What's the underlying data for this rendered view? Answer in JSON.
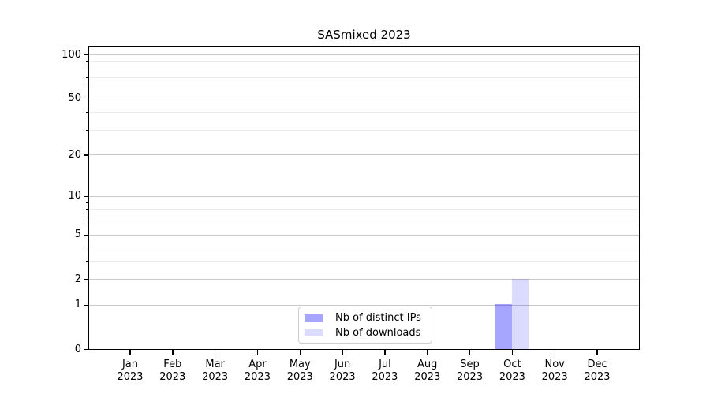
{
  "title": "SASmixed 2023",
  "colors": {
    "grid_major": "#c9c9c9",
    "grid_minor": "#ebebeb",
    "spine": "#000000",
    "legend_border": "#cccccc",
    "bar_distinct_ips": "rgba(0,0,255,0.35)",
    "bar_downloads": "rgba(0,0,255,0.14)"
  },
  "chart_data": {
    "type": "bar",
    "title": "SASmixed 2023",
    "xlabel": "",
    "ylabel": "",
    "categories": [
      "Jan 2023",
      "Feb 2023",
      "Mar 2023",
      "Apr 2023",
      "May 2023",
      "Jun 2023",
      "Jul 2023",
      "Aug 2023",
      "Sep 2023",
      "Oct 2023",
      "Nov 2023",
      "Dec 2023"
    ],
    "series": [
      {
        "name": "Nb of distinct IPs",
        "color": "rgba(0,0,255,0.35)",
        "values": [
          0,
          0,
          0,
          0,
          0,
          0,
          0,
          0,
          0,
          1,
          0,
          0
        ]
      },
      {
        "name": "Nb of downloads",
        "color": "rgba(0,0,255,0.14)",
        "values": [
          0,
          0,
          0,
          0,
          0,
          0,
          0,
          0,
          0,
          2,
          0,
          0
        ]
      }
    ],
    "yscale": "log1p",
    "ylim": [
      0,
      115
    ],
    "yticks": [
      0,
      1,
      2,
      5,
      10,
      20,
      50,
      100
    ],
    "yticks_minor": [
      3,
      4,
      6,
      7,
      8,
      9,
      30,
      40,
      60,
      70,
      80,
      90
    ],
    "grid": "both",
    "legend_position": "lower center"
  }
}
